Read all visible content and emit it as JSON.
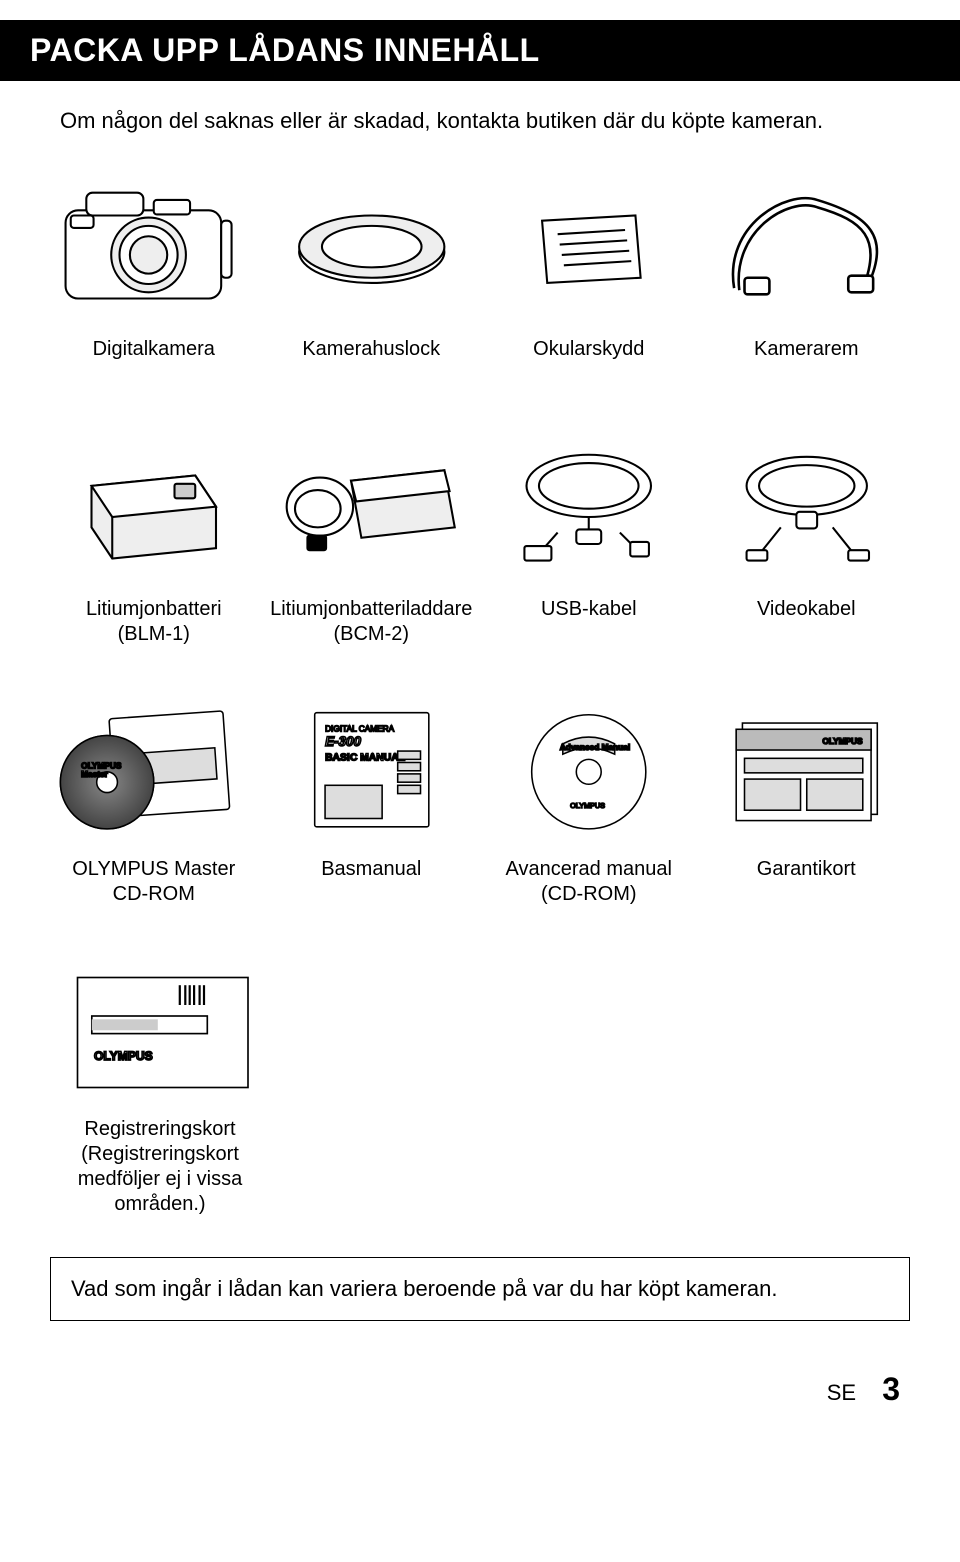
{
  "header": {
    "title": "PACKA UPP LÅDANS INNEHÅLL"
  },
  "intro": "Om någon del saknas eller är skadad, kontakta butiken där du köpte kameran.",
  "row1": [
    {
      "label": "Digitalkamera"
    },
    {
      "label": "Kamerahuslock"
    },
    {
      "label": "Okularskydd"
    },
    {
      "label": "Kamerarem"
    }
  ],
  "row2": [
    {
      "label": "Litiumjonbatteri\n(BLM-1)"
    },
    {
      "label": "Litiumjonbatteriladdare\n(BCM-2)"
    },
    {
      "label": "USB-kabel"
    },
    {
      "label": "Videokabel"
    }
  ],
  "row3": [
    {
      "label": "OLYMPUS Master\nCD-ROM"
    },
    {
      "label": "Basmanual"
    },
    {
      "label": "Avancerad manual\n(CD-ROM)"
    },
    {
      "label": "Garantikort"
    }
  ],
  "row4": [
    {
      "label": "Registreringskort\n(Registreringskort\nmedföljer ej i vissa\nområden.)"
    }
  ],
  "note": "Vad som ingår i lådan kan variera beroende på var du har köpt kameran.",
  "footer": {
    "lang": "SE",
    "page": "3"
  },
  "style": {
    "background": "#ffffff",
    "titlebar_bg": "#000000",
    "titlebar_fg": "#ffffff",
    "title_fontsize": 32,
    "body_fontsize": 22,
    "label_fontsize": 20,
    "border_color": "#000000",
    "illus_stroke": "#000000",
    "illus_fill": "#ffffff",
    "illus_shade": "#d9d9d9"
  }
}
